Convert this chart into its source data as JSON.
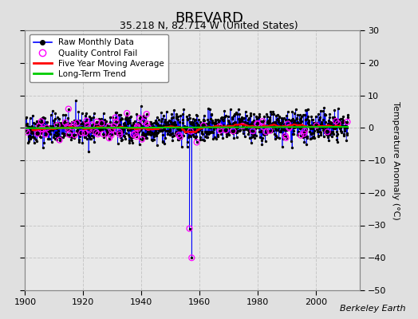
{
  "title": "BREVARD",
  "subtitle": "35.218 N, 82.714 W (United States)",
  "ylabel": "Temperature Anomaly (°C)",
  "watermark": "Berkeley Earth",
  "xlim": [
    1900,
    2015
  ],
  "ylim": [
    -50,
    30
  ],
  "yticks": [
    -50,
    -40,
    -30,
    -20,
    -10,
    0,
    10,
    20,
    30
  ],
  "xticks": [
    1900,
    1920,
    1940,
    1960,
    1980,
    2000
  ],
  "fig_bg_color": "#e0e0e0",
  "plot_bg_color": "#e8e8e8",
  "raw_line_color": "#0000ff",
  "raw_dot_color": "#000000",
  "qc_fail_color": "#ff00ff",
  "moving_avg_color": "#ff0000",
  "trend_color": "#00cc00",
  "grid_color": "#c8c8c8",
  "seed": 42,
  "start_year": 1900,
  "end_year": 2011,
  "outlier_year1": 1956.5,
  "outlier_val1": -31,
  "outlier_year2": 1957.3,
  "outlier_val2": -40,
  "legend_loc": "upper left",
  "title_fontsize": 13,
  "subtitle_fontsize": 9,
  "tick_fontsize": 8,
  "ylabel_fontsize": 8,
  "watermark_fontsize": 8,
  "legend_fontsize": 7.5
}
